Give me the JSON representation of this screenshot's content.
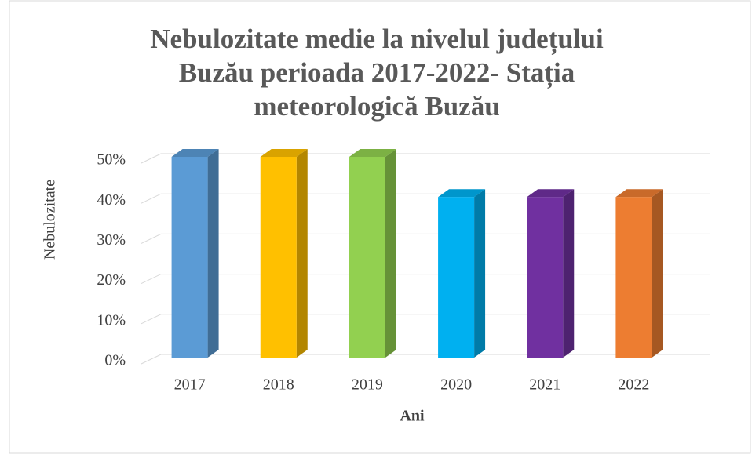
{
  "chart_data": {
    "type": "bar3d",
    "title": "Nebulozitate medie la nivelul județului Buzău perioada 2017-2022- Stația meteorologică Buzău",
    "x_label": "Ani",
    "y_label": "Nebulozitate",
    "categories": [
      "2017",
      "2018",
      "2019",
      "2020",
      "2021",
      "2022"
    ],
    "values": [
      50,
      50,
      50,
      40,
      40,
      40
    ],
    "colors": [
      "#5b9bd5",
      "#ffc000",
      "#92d050",
      "#00b0f0",
      "#7030a0",
      "#ed7d31"
    ],
    "ylim": [
      0,
      50
    ],
    "yticks": [
      {
        "value": 0,
        "label": "0%"
      },
      {
        "value": 10,
        "label": "10%"
      },
      {
        "value": 20,
        "label": "20%"
      },
      {
        "value": 30,
        "label": "30%"
      },
      {
        "value": 40,
        "label": "40%"
      },
      {
        "value": 50,
        "label": "50%"
      }
    ],
    "grid": true
  }
}
